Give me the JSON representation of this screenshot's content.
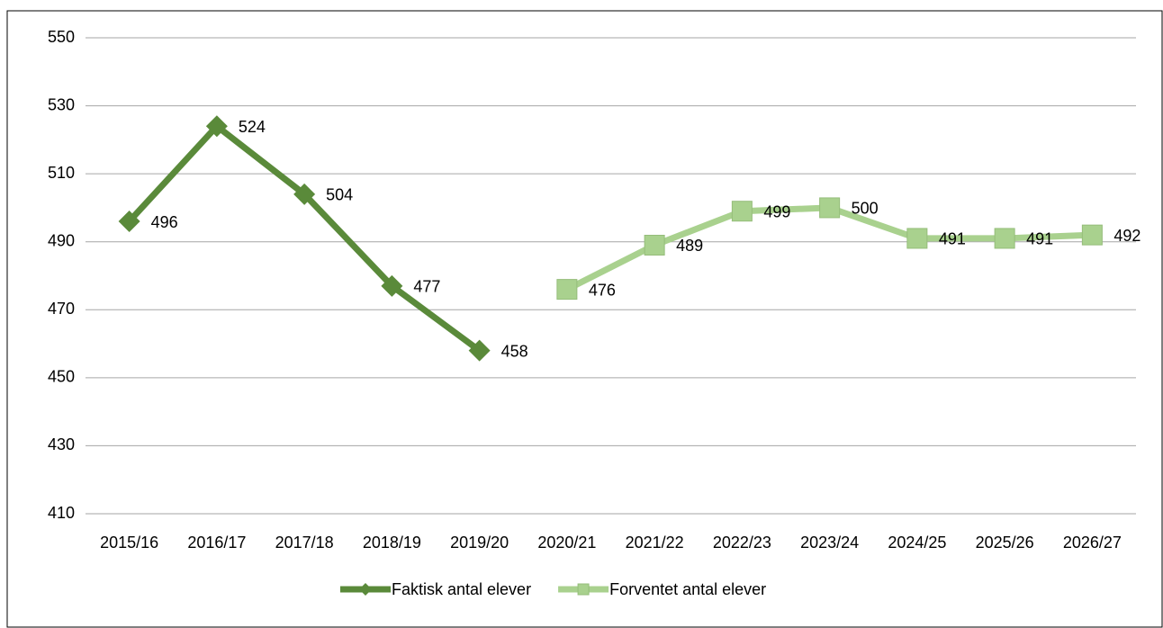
{
  "chart_data": {
    "type": "line",
    "categories": [
      "2015/16",
      "2016/17",
      "2017/18",
      "2018/19",
      "2019/20",
      "2020/21",
      "2021/22",
      "2022/23",
      "2023/24",
      "2024/25",
      "2025/26",
      "2026/27"
    ],
    "series": [
      {
        "name": "Faktisk antal elever",
        "color": "#5a8a3a",
        "marker": "diamond",
        "values": [
          496,
          524,
          504,
          477,
          458,
          null,
          null,
          null,
          null,
          null,
          null,
          null
        ]
      },
      {
        "name": "Forventet antal elever",
        "color": "#a9d18e",
        "marker": "square",
        "values": [
          null,
          null,
          null,
          null,
          null,
          476,
          489,
          499,
          500,
          491,
          491,
          492
        ]
      }
    ],
    "ylim": [
      410,
      550
    ],
    "yticks": [
      410,
      430,
      450,
      470,
      490,
      510,
      530,
      550
    ],
    "grid": true,
    "legend": "bottom"
  }
}
